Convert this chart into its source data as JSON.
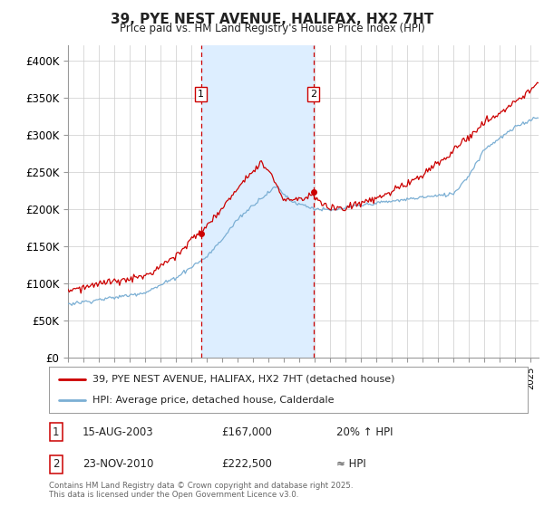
{
  "title": "39, PYE NEST AVENUE, HALIFAX, HX2 7HT",
  "subtitle": "Price paid vs. HM Land Registry's House Price Index (HPI)",
  "ylim": [
    0,
    420000
  ],
  "yticks": [
    0,
    50000,
    100000,
    150000,
    200000,
    250000,
    300000,
    350000,
    400000
  ],
  "ytick_labels": [
    "£0",
    "£50K",
    "£100K",
    "£150K",
    "£200K",
    "£250K",
    "£300K",
    "£350K",
    "£400K"
  ],
  "xlim_start": 1995,
  "xlim_end": 2025.5,
  "background_color": "#ffffff",
  "grid_color": "#cccccc",
  "purchase1_date": 2003.62,
  "purchase1_price": 167000,
  "purchase2_date": 2010.9,
  "purchase2_price": 222500,
  "legend_house": "39, PYE NEST AVENUE, HALIFAX, HX2 7HT (detached house)",
  "legend_hpi": "HPI: Average price, detached house, Calderdale",
  "annotation1_date": "15-AUG-2003",
  "annotation1_price": "£167,000",
  "annotation1_hpi": "20% ↑ HPI",
  "annotation2_date": "23-NOV-2010",
  "annotation2_price": "£222,500",
  "annotation2_hpi": "≈ HPI",
  "footer": "Contains HM Land Registry data © Crown copyright and database right 2025.\nThis data is licensed under the Open Government Licence v3.0.",
  "line_color_red": "#cc0000",
  "line_color_blue": "#7bafd4",
  "shaded_color": "#ddeeff",
  "marker_size": 5
}
